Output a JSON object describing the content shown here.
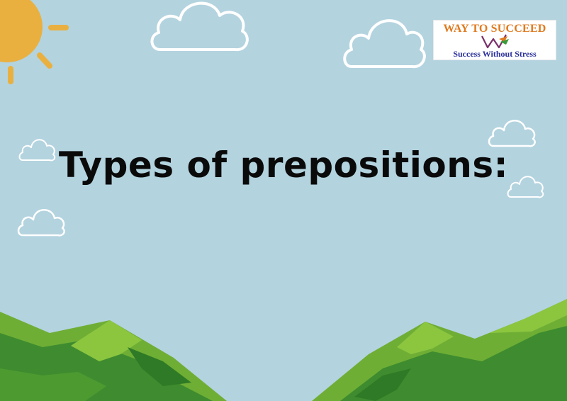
{
  "slide": {
    "title": "Types of prepositions:"
  },
  "logo": {
    "brand": "WAY TO SUCCEED",
    "tagline": "Success Without Stress",
    "brand_color": "#e07a1f",
    "tagline_color": "#2a2f9a"
  },
  "colors": {
    "sky": "#b3d3df",
    "sun": "#e9b040",
    "hill_dark": "#3e8c2f",
    "hill_light": "#8cc63f"
  }
}
